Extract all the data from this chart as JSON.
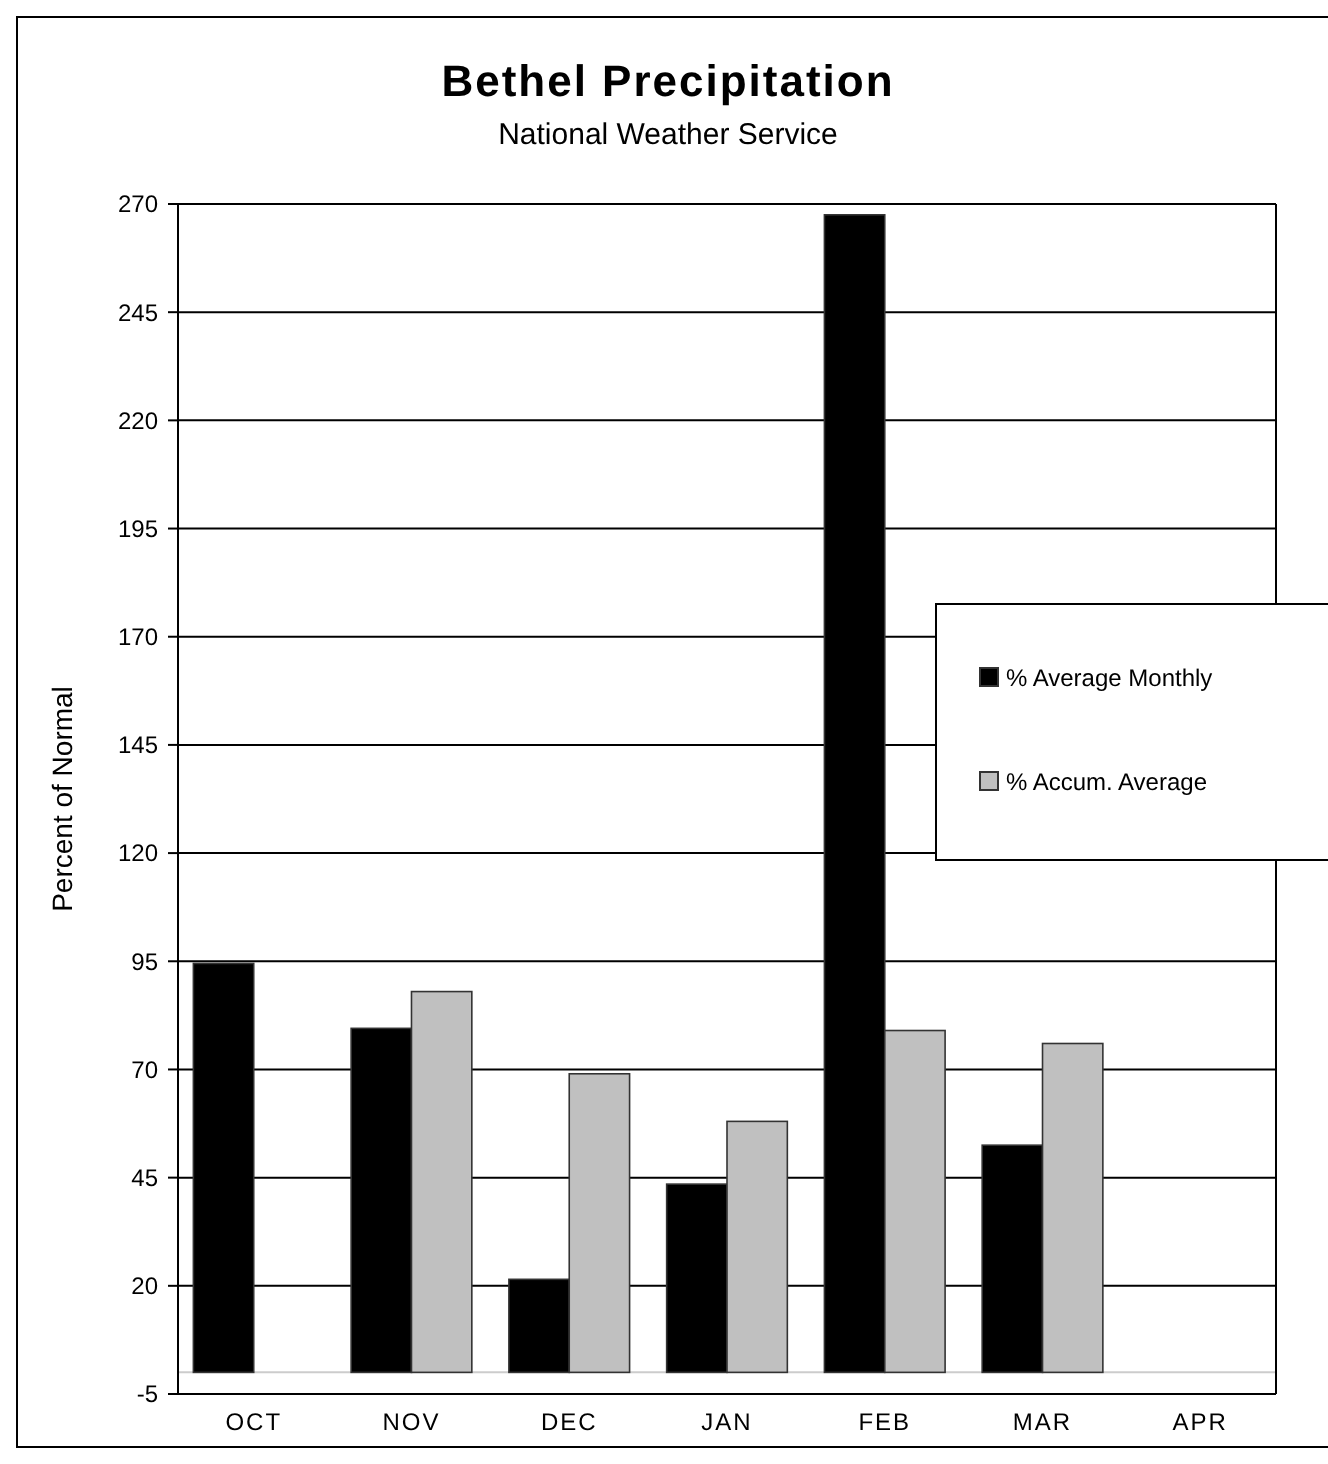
{
  "chart_data": {
    "type": "bar",
    "title": "Bethel Precipitation",
    "subtitle": "National Weather Service",
    "ylabel": "Percent of Normal",
    "categories": [
      "OCT",
      "NOV",
      "DEC",
      "JAN",
      "FEB",
      "MAR",
      "APR"
    ],
    "series": [
      {
        "name": "% Average Monthly",
        "color": "#000000",
        "values": [
          94.5,
          79.5,
          21.5,
          43.5,
          267.5,
          52.5,
          null
        ]
      },
      {
        "name": "% Accum. Average",
        "color": "#c0c0c0",
        "values": [
          null,
          88,
          69,
          58,
          79,
          76,
          null
        ]
      }
    ],
    "ylim": [
      -5,
      270
    ],
    "yticks": [
      -5,
      20,
      45,
      70,
      95,
      120,
      145,
      170,
      195,
      220,
      245,
      270
    ],
    "grid": "y",
    "legend": "right"
  }
}
